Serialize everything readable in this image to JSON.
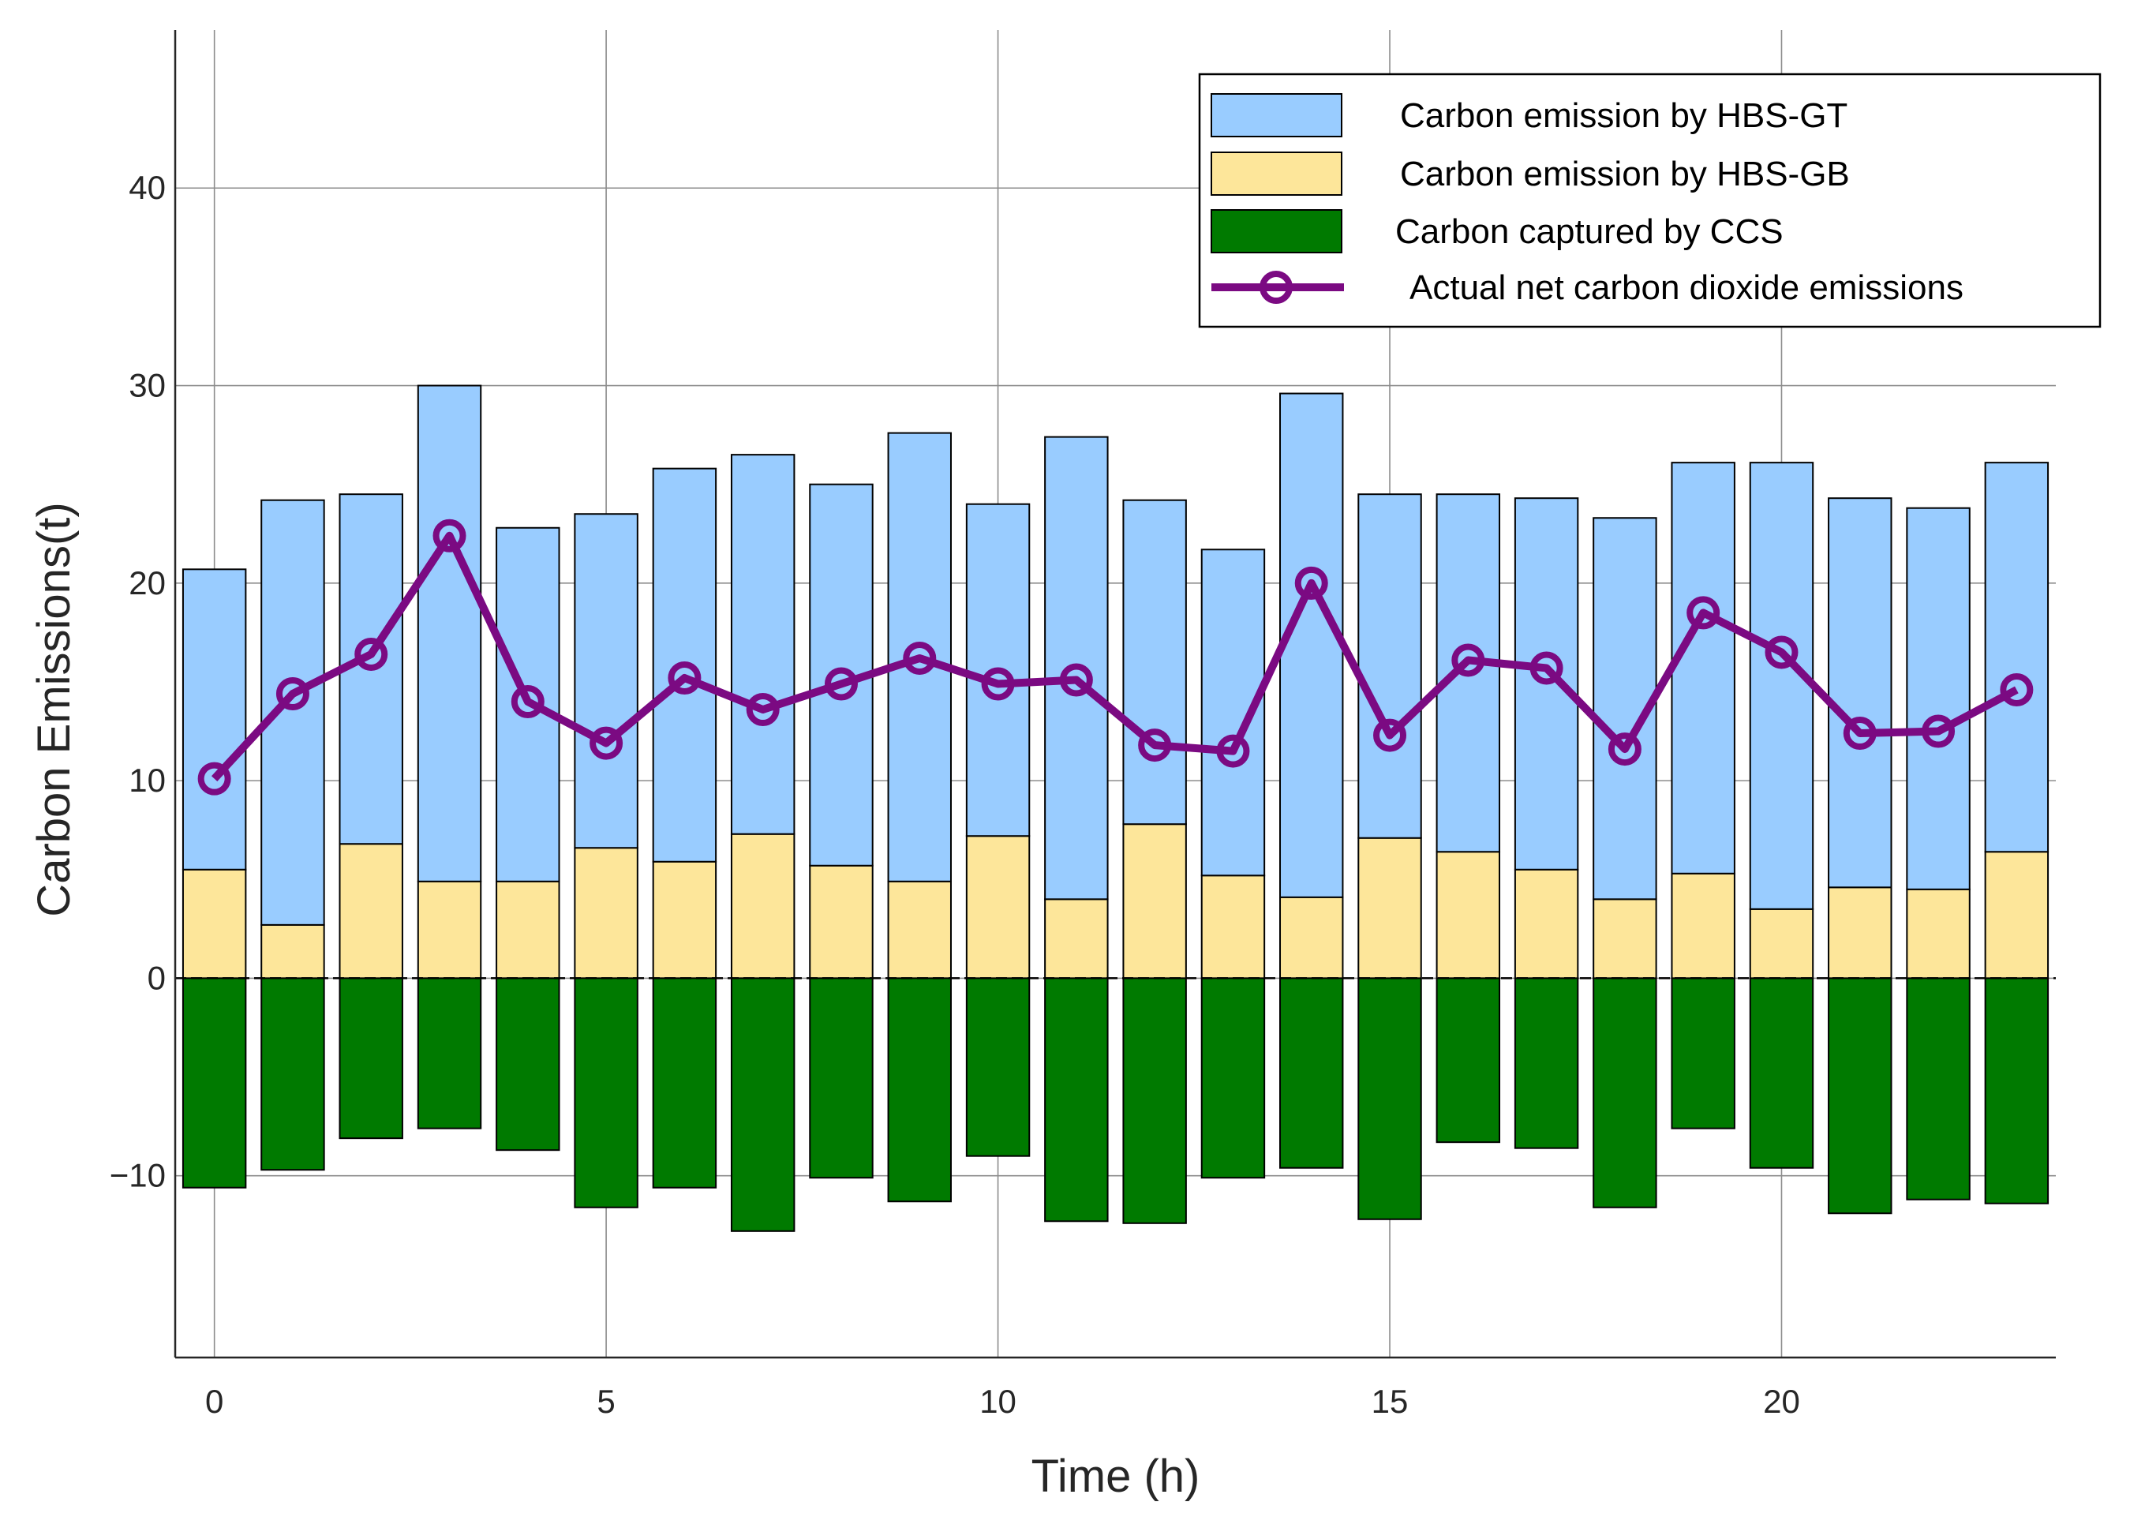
{
  "chart_data": {
    "type": "bar",
    "title": "",
    "xlabel": "Time (h)",
    "ylabel": "Carbon Emissions(t)",
    "xlim": [
      -0.5,
      23.5
    ],
    "ylim": [
      -19.2,
      48
    ],
    "xticks": [
      0,
      5,
      10,
      15,
      20
    ],
    "yticks": [
      -10,
      0,
      10,
      20,
      30,
      40
    ],
    "ytick_labels": [
      "−10",
      "0",
      "10",
      "20",
      "30",
      "40"
    ],
    "grid": true,
    "legend_position": "top-right",
    "x": [
      0,
      1,
      2,
      3,
      4,
      5,
      6,
      7,
      8,
      9,
      10,
      11,
      12,
      13,
      14,
      15,
      16,
      17,
      18,
      19,
      20,
      21,
      22,
      23
    ],
    "series": [
      {
        "name": "Carbon emission by HBS-GB",
        "kind": "bar",
        "color": "#FDE69A",
        "values": [
          5.5,
          2.7,
          6.8,
          4.9,
          4.9,
          6.6,
          5.9,
          7.3,
          5.7,
          4.9,
          7.2,
          4.0,
          7.8,
          5.2,
          4.1,
          7.1,
          6.4,
          5.5,
          4.0,
          5.3,
          3.5,
          4.6,
          4.5,
          6.4
        ]
      },
      {
        "name": "Carbon emission by HBS-GT",
        "kind": "bar",
        "color": "#99CCFF",
        "values": [
          15.2,
          21.5,
          17.7,
          25.1,
          17.9,
          16.9,
          19.9,
          19.2,
          19.3,
          22.7,
          16.8,
          23.4,
          16.4,
          16.5,
          25.5,
          17.4,
          18.1,
          18.8,
          19.3,
          20.8,
          22.6,
          19.7,
          19.3,
          19.7
        ]
      },
      {
        "name": "Carbon captured by CCS",
        "kind": "bar",
        "color": "#007A00",
        "values": [
          -10.6,
          -9.7,
          -8.1,
          -7.6,
          -8.7,
          -11.6,
          -10.6,
          -12.8,
          -10.1,
          -11.3,
          -9.0,
          -12.3,
          -12.4,
          -10.1,
          -9.6,
          -12.2,
          -8.3,
          -8.6,
          -11.6,
          -7.6,
          -9.6,
          -11.9,
          -11.2,
          -11.4
        ]
      },
      {
        "name": "Actual net carbon dioxide emissions",
        "kind": "line",
        "marker": "o",
        "color": "#7B0A82",
        "values": [
          10.1,
          14.4,
          16.4,
          22.4,
          14.0,
          11.9,
          15.2,
          13.6,
          14.9,
          16.2,
          14.9,
          15.1,
          11.8,
          11.5,
          20.0,
          12.3,
          16.1,
          15.7,
          11.6,
          18.5,
          16.5,
          12.4,
          12.5,
          14.6
        ]
      }
    ]
  }
}
